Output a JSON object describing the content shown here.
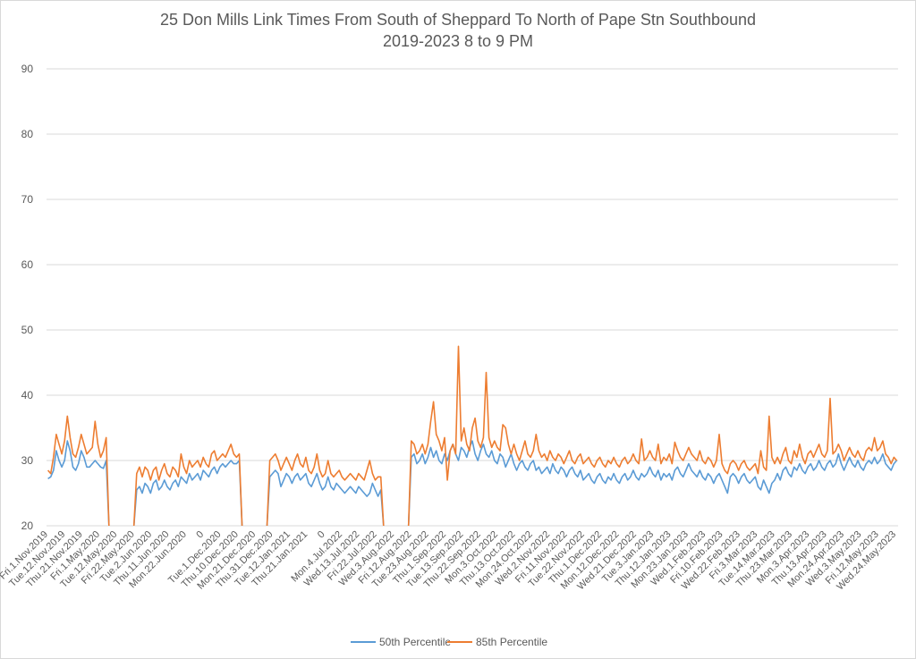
{
  "chart_data": {
    "type": "line",
    "title": "25 Don Mills Link Times From South of Sheppard To North of Pape Stn Southbound",
    "subtitle": "2019-2023 8 to 9 PM",
    "xlabel": "",
    "ylabel": "",
    "ylim": [
      20,
      90
    ],
    "yticks": [
      "20",
      "30",
      "40",
      "50",
      "60",
      "70",
      "80",
      "90"
    ],
    "grid": true,
    "legend_position": "bottom",
    "x_tick_labels": [
      "Fri.1.Nov.2019",
      "Tue.12.Nov.2019",
      "Thu.21.Nov.2019",
      "Fri.1.May.2020",
      "Tue.12.May.2020",
      "Fri.22.May.2020",
      "Tue.2.Jun.2020",
      "Thu.11.Jun.2020",
      "Mon.22.Jun.2020",
      "0",
      "Tue.1.Dec.2020",
      "Thu.10.Dec.2020",
      "Mon.21.Dec.2020",
      "Thu.31.Dec.2020",
      "Tue.12.Jan.2021",
      "Thu.21.Jan.2021",
      "0",
      "Mon.4.Jul.2022",
      "Wed.13.Jul.2022",
      "Fri.22.Jul.2022",
      "Wed.3.Aug.2022",
      "Fri.12.Aug.2022",
      "Tue.23.Aug.2022",
      "Thu.1.Sep.2022",
      "Tue.13.Sep.2022",
      "Thu.22.Sep.2022",
      "Mon.3.Oct.2022",
      "Thu.13.Oct.2022",
      "Mon.24.Oct.2022",
      "Wed.2.Nov.2022",
      "Fri.11.Nov.2022",
      "Tue.22.Nov.2022",
      "Thu.1.Dec.2022",
      "Mon.12.Dec.2022",
      "Wed.21.Dec.2022",
      "Tue.3.Jan.2023",
      "Thu.12.Jan.2023",
      "Mon.23.Jan.2023",
      "Wed.1.Feb.2023",
      "Fri.10.Feb.2023",
      "Wed.22.Feb.2023",
      "Fri.3.Mar.2023",
      "Tue.14.Mar.2023",
      "Thu.23.Mar.2023",
      "Mon.3.Apr.2023",
      "Thu.13.Apr.2023",
      "Mon.24.Apr.2023",
      "Wed.3.May.2023",
      "Fri.12.May.2023",
      "Wed.24.May.2023"
    ],
    "series": [
      {
        "name": "50th Percentile",
        "color": "#5b9bd5",
        "segments": [
          [
            27.2,
            27.5,
            28.5,
            31.5,
            30.0,
            29.0,
            30.0,
            33.0,
            31.5,
            29.0,
            28.5,
            29.5,
            31.5,
            30.5,
            29.0,
            29.0,
            29.5,
            30.0,
            29.5,
            29.0,
            28.8,
            30.0
          ],
          [
            25.5,
            26.0,
            25.0,
            26.5,
            26.0,
            25.0,
            26.5,
            27.0,
            25.5,
            26.0,
            27.0,
            26.0,
            25.5,
            26.5,
            27.0,
            26.0,
            27.5,
            27.0,
            26.5,
            28.0,
            27.0,
            27.5,
            28.0,
            27.0,
            28.5,
            28.0,
            27.5,
            28.5,
            29.0,
            28.0,
            29.0,
            29.5,
            29.0,
            29.5,
            30.0,
            29.5,
            29.5,
            30.0
          ],
          [
            27.5,
            28.0,
            28.5,
            28.0,
            26.0,
            27.0,
            28.0,
            27.5,
            26.5,
            27.5,
            28.0,
            27.0,
            27.5,
            28.0,
            26.5,
            26.0,
            27.0,
            28.0,
            26.5,
            25.5,
            26.0,
            27.5,
            26.0,
            25.5,
            26.5,
            26.0,
            25.5,
            25.0,
            25.5,
            26.0,
            25.5,
            25.0,
            26.0,
            25.5,
            25.0,
            24.5,
            25.0,
            26.5,
            25.5,
            24.5,
            25.5
          ],
          [
            30.5,
            31.0,
            29.5,
            30.0,
            31.0,
            29.5,
            30.5,
            32.0,
            30.5,
            31.5,
            30.0,
            29.5,
            31.0,
            30.0,
            31.5,
            32.5,
            31.0,
            30.0,
            32.0,
            31.5,
            30.5,
            32.0,
            33.0,
            31.0,
            30.0,
            31.5,
            32.5,
            31.0,
            30.5,
            31.5,
            30.0,
            29.5,
            31.0,
            30.5,
            29.0,
            30.0,
            31.0,
            29.5,
            28.5,
            29.5,
            30.0,
            29.0,
            28.5,
            29.5,
            30.0,
            28.5,
            29.0,
            28.0,
            28.5,
            29.0,
            28.0,
            29.5,
            28.5,
            28.0,
            29.0,
            28.5,
            27.5,
            28.5,
            29.0,
            28.0,
            27.5,
            28.5,
            27.0,
            27.5,
            28.0,
            27.0,
            26.5,
            27.5,
            28.0,
            27.0,
            26.5,
            27.5,
            27.0,
            28.0,
            27.0,
            26.5,
            27.5,
            28.0,
            27.0,
            27.5,
            28.5,
            27.5,
            27.0,
            28.0,
            27.5,
            28.0,
            29.0,
            28.0,
            27.5,
            28.5,
            27.0,
            28.0,
            27.5,
            28.0,
            27.0,
            28.5,
            29.0,
            28.0,
            27.5,
            28.5,
            29.5,
            28.5,
            28.0,
            27.5,
            28.5,
            27.5,
            27.0,
            28.0,
            27.5,
            26.5,
            27.5,
            28.0,
            27.0,
            26.0,
            25.0,
            27.5,
            28.0,
            27.5,
            26.5,
            27.5,
            28.0,
            27.0,
            26.5,
            27.0,
            27.5,
            26.0,
            25.5,
            27.0,
            26.0,
            25.0,
            26.5,
            27.0,
            28.0,
            27.0,
            28.5,
            29.0,
            28.0,
            27.5,
            29.0,
            28.5,
            29.5,
            28.5,
            28.0,
            29.0,
            29.5,
            28.5,
            29.0,
            30.0,
            29.0,
            28.5,
            29.5,
            30.0,
            29.0,
            29.5,
            31.0,
            29.5,
            28.5,
            29.5,
            30.5,
            29.5,
            29.0,
            30.0,
            29.0,
            28.5,
            29.5,
            30.0,
            29.5,
            30.5,
            29.5,
            30.0,
            31.0,
            29.5,
            29.0,
            28.5,
            29.5,
            30.0
          ]
        ]
      },
      {
        "name": "85th Percentile",
        "color": "#ed7d31",
        "segments": [
          [
            28.5,
            28.0,
            30.5,
            34.0,
            32.5,
            31.0,
            33.0,
            36.8,
            33.5,
            31.0,
            30.5,
            32.0,
            34.0,
            32.5,
            31.0,
            31.5,
            32.0,
            36.0,
            32.5,
            30.5,
            31.5,
            33.5
          ],
          [
            28.0,
            29.0,
            27.5,
            29.0,
            28.5,
            27.0,
            28.5,
            29.0,
            27.0,
            28.5,
            29.5,
            28.0,
            27.5,
            29.0,
            28.5,
            27.5,
            31.0,
            29.0,
            28.0,
            30.0,
            29.0,
            29.5,
            30.0,
            29.0,
            30.5,
            29.5,
            29.0,
            31.0,
            31.5,
            30.0,
            30.5,
            31.0,
            30.5,
            31.5,
            32.5,
            31.0,
            30.5,
            31.0
          ],
          [
            30.0,
            30.5,
            31.0,
            30.0,
            28.5,
            29.5,
            30.5,
            29.5,
            28.5,
            30.0,
            31.0,
            29.5,
            29.0,
            30.5,
            28.5,
            28.0,
            29.0,
            31.0,
            28.5,
            27.5,
            28.0,
            30.0,
            28.0,
            27.5,
            28.0,
            28.5,
            27.5,
            27.0,
            27.5,
            28.0,
            27.5,
            27.0,
            28.0,
            27.5,
            27.0,
            28.5,
            30.0,
            28.0,
            27.0,
            27.5,
            27.5
          ],
          [
            33.0,
            32.5,
            31.0,
            31.5,
            32.5,
            31.0,
            32.5,
            36.0,
            39.0,
            34.0,
            33.0,
            31.5,
            33.5,
            27.0,
            31.5,
            32.5,
            31.0,
            47.5,
            33.0,
            35.0,
            32.5,
            31.5,
            35.0,
            36.5,
            33.0,
            32.0,
            33.5,
            43.5,
            33.5,
            32.0,
            33.0,
            32.0,
            31.5,
            35.5,
            35.0,
            32.5,
            31.0,
            32.5,
            31.0,
            30.0,
            31.5,
            33.0,
            31.0,
            30.5,
            31.5,
            34.0,
            31.5,
            30.5,
            31.0,
            30.0,
            31.5,
            30.5,
            30.0,
            31.0,
            30.5,
            29.5,
            30.5,
            31.5,
            30.0,
            29.5,
            30.5,
            31.0,
            29.5,
            30.0,
            30.5,
            29.5,
            29.0,
            30.0,
            30.5,
            29.5,
            29.0,
            30.0,
            29.5,
            30.5,
            29.5,
            29.0,
            30.0,
            30.5,
            29.5,
            30.0,
            31.0,
            30.0,
            29.5,
            33.3,
            30.0,
            30.5,
            31.5,
            30.5,
            30.0,
            32.5,
            29.5,
            30.5,
            30.0,
            31.0,
            29.5,
            32.8,
            31.5,
            30.5,
            30.0,
            31.0,
            32.0,
            31.0,
            30.5,
            30.0,
            31.5,
            30.0,
            29.5,
            30.5,
            30.0,
            29.0,
            30.0,
            34.0,
            29.5,
            28.5,
            28.0,
            29.5,
            30.0,
            29.5,
            28.5,
            29.5,
            30.0,
            29.0,
            28.5,
            29.0,
            29.5,
            28.0,
            31.5,
            29.0,
            28.5,
            36.8,
            30.5,
            29.5,
            30.5,
            29.5,
            31.0,
            32.0,
            30.0,
            29.5,
            31.5,
            30.5,
            32.5,
            30.5,
            29.5,
            31.0,
            31.5,
            30.5,
            31.5,
            32.5,
            31.0,
            30.5,
            31.5,
            39.5,
            31.0,
            31.5,
            32.5,
            31.5,
            30.0,
            31.0,
            32.0,
            31.0,
            30.5,
            31.5,
            30.5,
            30.0,
            31.5,
            32.0,
            31.5,
            33.5,
            31.5,
            32.0,
            33.0,
            31.0,
            30.5,
            29.5,
            30.5,
            30.0
          ]
        ]
      }
    ]
  }
}
